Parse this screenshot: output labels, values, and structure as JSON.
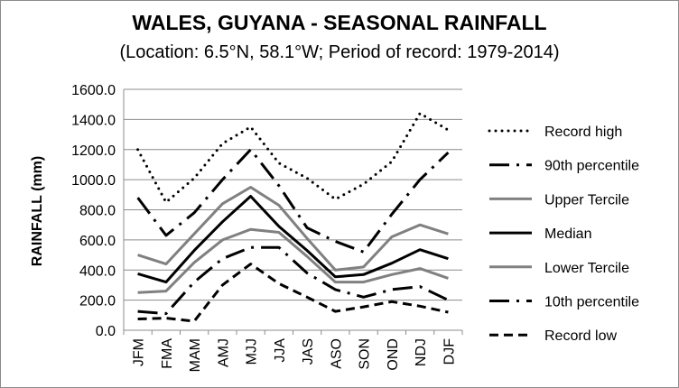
{
  "chart_data": {
    "type": "line",
    "title": "WALES, GUYANA - SEASONAL RAINFALL",
    "subtitle": "(Location: 6.5°N, 58.1°W; Period of record: 1979-2014)",
    "ylabel": "RAINFALL (mm)",
    "xlabel": "",
    "ylim": [
      0,
      1600
    ],
    "yticks": [
      "0.0",
      "200.0",
      "400.0",
      "600.0",
      "800.0",
      "1000.0",
      "1200.0",
      "1400.0",
      "1600.0"
    ],
    "grid": "horizontal",
    "legend_position": "right",
    "categories": [
      "JFM",
      "FMA",
      "MAM",
      "AMJ",
      "MJJ",
      "JJA",
      "JAS",
      "ASO",
      "SON",
      "OND",
      "NDJ",
      "DJF"
    ],
    "series": [
      {
        "name": "Record high",
        "style": "dotted",
        "color": "#000000",
        "values": [
          1200,
          850,
          1010,
          1240,
          1350,
          1110,
          1010,
          870,
          970,
          1120,
          1440,
          1330
        ]
      },
      {
        "name": "90th percentile",
        "style": "dashdot",
        "color": "#000000",
        "values": [
          880,
          630,
          780,
          1000,
          1200,
          960,
          680,
          590,
          520,
          770,
          1000,
          1180
        ]
      },
      {
        "name": "Upper Tercile",
        "style": "solid",
        "color": "#808080",
        "values": [
          500,
          440,
          640,
          840,
          950,
          830,
          610,
          400,
          420,
          620,
          700,
          640
        ]
      },
      {
        "name": "Median",
        "style": "solid",
        "color": "#000000",
        "values": [
          375,
          320,
          530,
          720,
          890,
          690,
          530,
          355,
          370,
          445,
          535,
          475
        ]
      },
      {
        "name": "Lower Tercile",
        "style": "solid",
        "color": "#808080",
        "values": [
          250,
          260,
          450,
          600,
          670,
          650,
          490,
          320,
          320,
          370,
          410,
          345
        ]
      },
      {
        "name": "10th percentile",
        "style": "dashdot",
        "color": "#000000",
        "values": [
          125,
          110,
          320,
          475,
          550,
          550,
          380,
          270,
          220,
          270,
          290,
          200
        ]
      },
      {
        "name": "Record low",
        "style": "dashed",
        "color": "#000000",
        "values": [
          75,
          80,
          60,
          300,
          440,
          310,
          220,
          125,
          155,
          190,
          160,
          120
        ]
      }
    ]
  }
}
